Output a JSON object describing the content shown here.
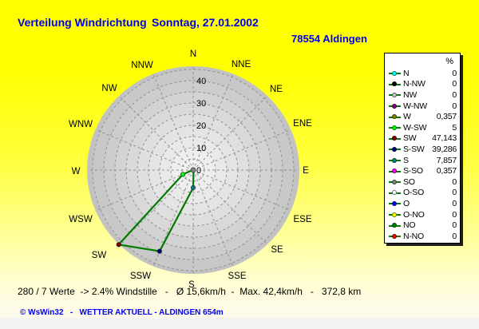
{
  "header": {
    "title": "Verteilung Windrichtung",
    "date": "Sonntag, 27.01.2002",
    "station": "78554 Aldingen"
  },
  "legend": {
    "header": "%",
    "rows": [
      {
        "label": "N",
        "value": "0",
        "value_num": 0,
        "color": "#00ffff"
      },
      {
        "label": "N-NW",
        "value": "0",
        "value_num": 0,
        "color": "#000000"
      },
      {
        "label": "NW",
        "value": "0",
        "value_num": 0,
        "color": "#c0c0c0"
      },
      {
        "label": "W-NW",
        "value": "0",
        "value_num": 0,
        "color": "#800080"
      },
      {
        "label": "W",
        "value": "0,357",
        "value_num": 0.357,
        "color": "#808000"
      },
      {
        "label": "W-SW",
        "value": "5",
        "value_num": 5,
        "color": "#00ff00"
      },
      {
        "label": "SW",
        "value": "47,143",
        "value_num": 47.143,
        "color": "#800000"
      },
      {
        "label": "S-SW",
        "value": "39,286",
        "value_num": 39.286,
        "color": "#000080"
      },
      {
        "label": "S",
        "value": "7,857",
        "value_num": 7.857,
        "color": "#008080"
      },
      {
        "label": "S-SO",
        "value": "0,357",
        "value_num": 0.357,
        "color": "#ff00ff"
      },
      {
        "label": "SO",
        "value": "0",
        "value_num": 0,
        "color": "#808080"
      },
      {
        "label": "O-SO",
        "value": "0",
        "value_num": 0,
        "color": "#ffffff"
      },
      {
        "label": "O",
        "value": "0",
        "value_num": 0,
        "color": "#0000ff"
      },
      {
        "label": "O-NO",
        "value": "0",
        "value_num": 0,
        "color": "#ffff00"
      },
      {
        "label": "NO",
        "value": "0",
        "value_num": 0,
        "color": "#008000"
      },
      {
        "label": "N-NO",
        "value": "0",
        "value_num": 0,
        "color": "#ff0000"
      }
    ]
  },
  "chart": {
    "compass_labels": [
      "N",
      "NNE",
      "NE",
      "ENE",
      "E",
      "ESE",
      "SE",
      "SSE",
      "S",
      "SSW",
      "SW",
      "WSW",
      "W",
      "WNW",
      "NW",
      "NNW"
    ],
    "radial_ticks": [
      "40",
      "30",
      "20",
      "10",
      "0"
    ]
  },
  "chart_data": {
    "type": "line",
    "subtype": "polar-wind-rose",
    "title": "Verteilung Windrichtung  Sonntag, 27.01.2002  -  78554 Aldingen",
    "units": "%",
    "categories": [
      "N",
      "N-NW",
      "NW",
      "W-NW",
      "W",
      "W-SW",
      "SW",
      "S-SW",
      "S",
      "S-SO",
      "SO",
      "O-SO",
      "O",
      "O-NO",
      "NO",
      "N-NO"
    ],
    "values": [
      0,
      0,
      0,
      0,
      0.357,
      5,
      47.143,
      39.286,
      7.857,
      0.357,
      0,
      0,
      0,
      0,
      0,
      0
    ],
    "radial_axis": {
      "ticks": [
        0,
        10,
        20,
        30,
        40
      ],
      "grid_step": 5,
      "max": 47.5
    },
    "line_color": "#007d00",
    "legend_position": "right",
    "compass_to_legend": {
      "N": "N",
      "NNE": "N-NO",
      "NE": "NO",
      "ENE": "O-NO",
      "E": "O",
      "ESE": "O-SO",
      "SE": "SO",
      "SSE": "S-SO",
      "S": "S",
      "SSW": "S-SW",
      "SW": "SW",
      "WSW": "W-SW",
      "W": "W",
      "WNW": "W-NW",
      "NW": "NW",
      "NNW": "N-NW"
    }
  },
  "status_line": "280 / 7 Werte  -> 2.4% Windstille   -   Ø 15,6km/h  -  Max. 42,4km/h   -   372,8 km",
  "footer": "© WsWin32   -   WETTER AKTUELL - ALDINGEN 654m"
}
